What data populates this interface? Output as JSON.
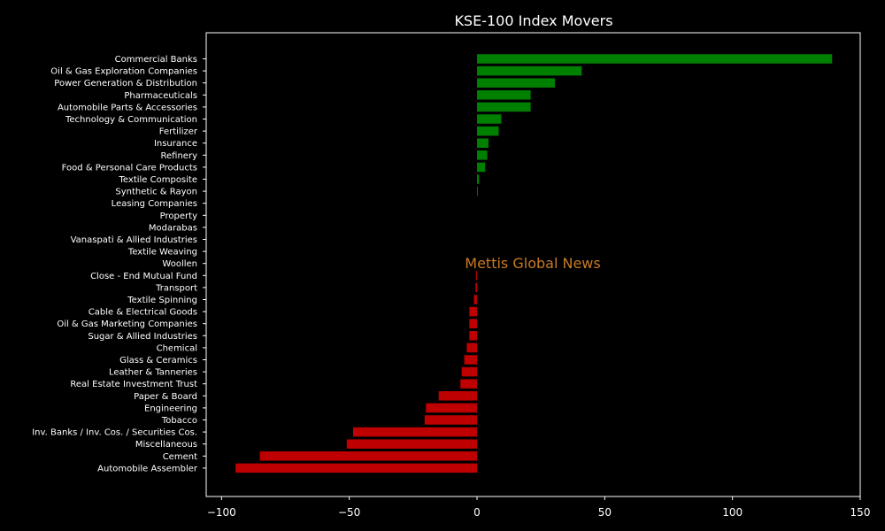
{
  "chart_data": {
    "type": "bar",
    "orientation": "horizontal",
    "title": "KSE-100 Index Movers",
    "xlabel": "",
    "ylabel": "",
    "xlim": [
      -106,
      150
    ],
    "xticks": [
      -100,
      -50,
      0,
      50,
      100,
      150
    ],
    "x_tick_labels": [
      "−100",
      "−50",
      "0",
      "50",
      "100",
      "150"
    ],
    "grid": false,
    "positive_color": "#008000",
    "negative_color": "#bf0000",
    "background_color": "#000000",
    "axis_color": "#ffffff",
    "categories": [
      "Commercial Banks",
      "Oil & Gas Exploration Companies",
      "Power Generation & Distribution",
      "Pharmaceuticals",
      "Automobile Parts & Accessories",
      "Technology & Communication",
      "Fertilizer",
      "Insurance",
      "Refinery",
      "Food & Personal Care Products",
      "Textile Composite",
      "Synthetic & Rayon",
      "Leasing Companies",
      "Property",
      "Modarabas",
      "Vanaspati & Allied Industries",
      "Textile Weaving",
      "Woollen",
      "Close - End Mutual Fund",
      "Transport",
      "Textile Spinning",
      "Cable & Electrical Goods",
      "Oil & Gas Marketing Companies",
      "Sugar & Allied Industries",
      "Chemical",
      "Glass & Ceramics",
      "Leather & Tanneries",
      "Real Estate Investment Trust",
      "Paper & Board",
      "Engineering",
      "Tobacco",
      "Inv. Banks / Inv. Cos. / Securities Cos.",
      "Miscellaneous",
      "Cement",
      "Automobile Assembler"
    ],
    "values": [
      139,
      41,
      30.5,
      21,
      21,
      9.5,
      8.5,
      4.5,
      4,
      3.2,
      0.8,
      0.3,
      0,
      0,
      0,
      0,
      0,
      0,
      -0.4,
      -0.6,
      -1.2,
      -3,
      -3,
      -3,
      -4,
      -5,
      -6,
      -6.5,
      -15,
      -20,
      -20.5,
      -48.5,
      -51,
      -85,
      -94.5
    ],
    "watermark": {
      "text": "Mettis Global News",
      "color": "#c87a24"
    }
  }
}
